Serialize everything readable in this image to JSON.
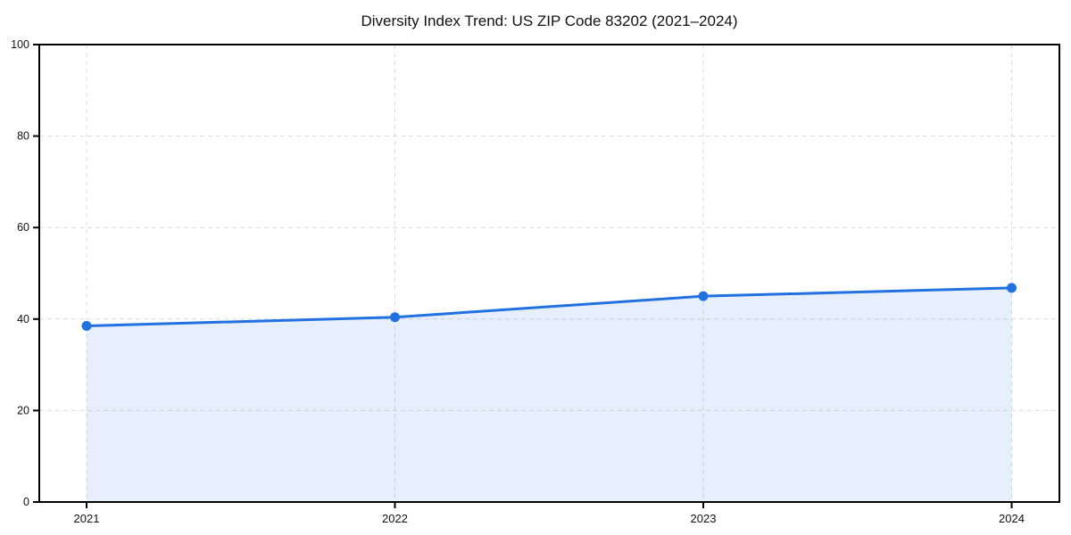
{
  "chart_data": {
    "type": "area",
    "title": "Diversity Index Trend: US ZIP Code 83202 (2021–2024)",
    "xlabel": "",
    "ylabel": "",
    "x": [
      2021,
      2022,
      2023,
      2024
    ],
    "series": [
      {
        "name": "Diversity Index",
        "values": [
          38.5,
          40.4,
          45.0,
          46.8
        ]
      }
    ],
    "ylim": [
      0,
      100
    ],
    "yticks": [
      0,
      20,
      40,
      60,
      80,
      100
    ],
    "xticks": [
      2021,
      2022,
      2023,
      2024
    ],
    "grid": "dashed",
    "legend": "none",
    "line_color": "#2271e0",
    "fill_color": "#2271e0",
    "fill_opacity": 0.11,
    "grid_color": "#dcdcdc",
    "axis_color": "#000000",
    "tick_label_color": "#111111",
    "marker": "circle",
    "marker_size": 5.5,
    "line_width": 3
  }
}
